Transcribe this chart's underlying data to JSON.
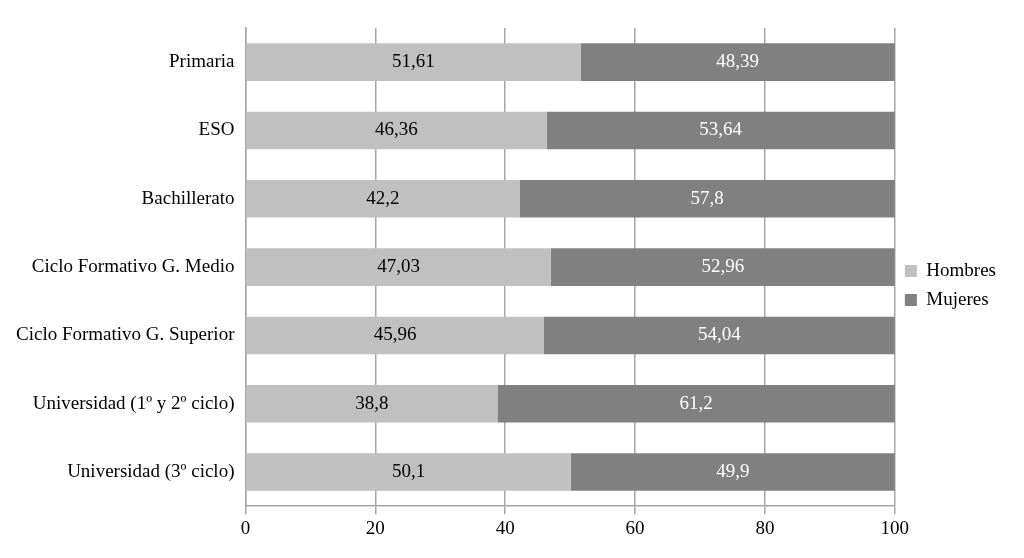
{
  "chart_data": {
    "type": "bar",
    "orientation": "horizontal",
    "stacked": true,
    "categories": [
      "Primaria",
      "ESO",
      "Bachillerato",
      "Ciclo Formativo G. Medio",
      "Ciclo Formativo G. Superior",
      "Universidad (1º y 2º ciclo)",
      "Universidad (3º ciclo)"
    ],
    "series": [
      {
        "name": "Hombres",
        "color": "#c0c0c0",
        "values": [
          51.61,
          46.36,
          42.2,
          47.03,
          45.96,
          38.8,
          50.1
        ],
        "value_labels": [
          "51,61",
          "46,36",
          "42,2",
          "47,03",
          "45,96",
          "38,8",
          "50,1"
        ]
      },
      {
        "name": "Mujeres",
        "color": "#808080",
        "values": [
          48.39,
          53.64,
          57.8,
          52.96,
          54.04,
          61.2,
          49.9
        ],
        "value_labels": [
          "48,39",
          "53,64",
          "57,8",
          "52,96",
          "54,04",
          "61,2",
          "49,9"
        ]
      }
    ],
    "xlim": [
      0,
      100
    ],
    "xticks": [
      0,
      20,
      40,
      60,
      80,
      100
    ],
    "grid": "x",
    "legend": "right"
  }
}
